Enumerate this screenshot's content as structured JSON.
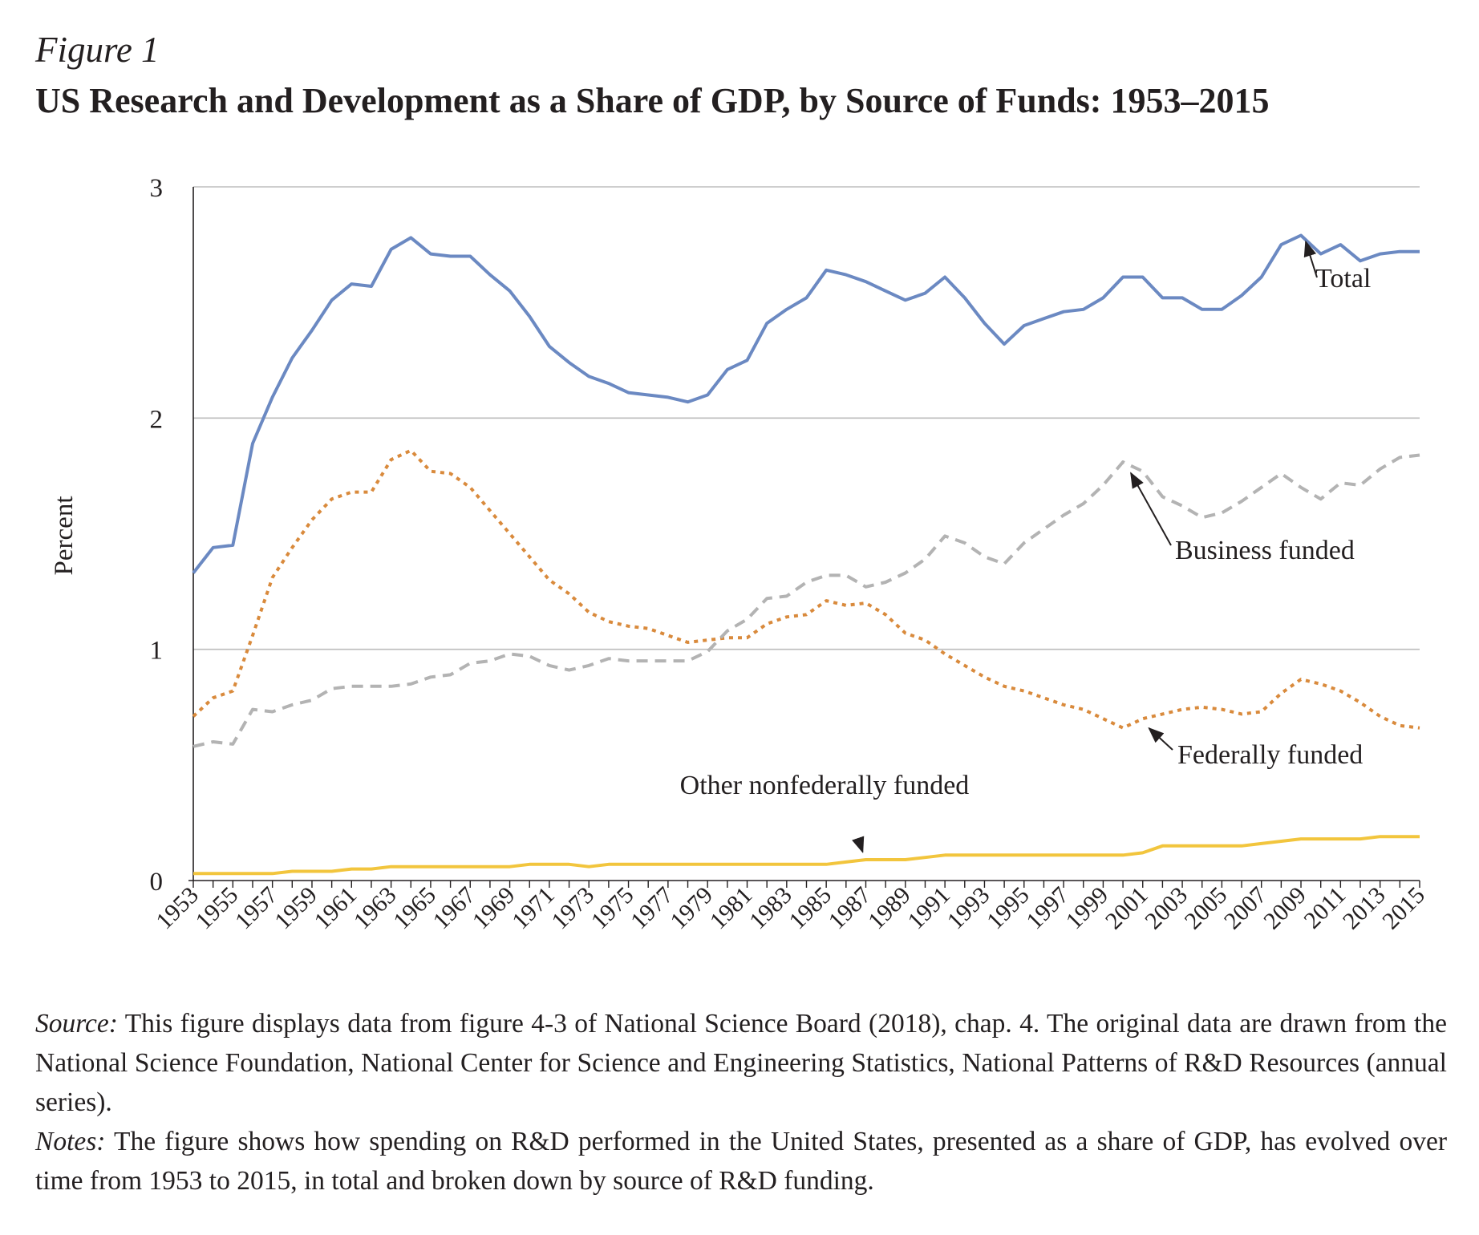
{
  "figure_label": "Figure 1",
  "title": "US Research and Development as a Share of GDP, by Source of Funds: 1953–2015",
  "source_label": "Source:",
  "source_text": "This figure displays data from figure 4-3 of National Science Board (2018), chap. 4. The original data are drawn from the National Science Foundation, National Center for Science and Engineering Statistics, National Patterns of R&D Resources (annual series).",
  "notes_label": "Notes:",
  "notes_text": "The figure shows how spending on R&D performed in the United States, presented as a share of GDP, has evolved over time from 1953 to 2015, in total and broken down by source of R&D funding.",
  "chart_data": {
    "type": "line",
    "ylabel": "Percent",
    "xlabel": "",
    "ylim": [
      0,
      3
    ],
    "yticks": [
      0,
      1,
      2,
      3
    ],
    "grid": true,
    "x": [
      1953,
      1954,
      1955,
      1956,
      1957,
      1958,
      1959,
      1960,
      1961,
      1962,
      1963,
      1964,
      1965,
      1966,
      1967,
      1968,
      1969,
      1970,
      1971,
      1972,
      1973,
      1974,
      1975,
      1976,
      1977,
      1978,
      1979,
      1980,
      1981,
      1982,
      1983,
      1984,
      1985,
      1986,
      1987,
      1988,
      1989,
      1990,
      1991,
      1992,
      1993,
      1994,
      1995,
      1996,
      1997,
      1998,
      1999,
      2000,
      2001,
      2002,
      2003,
      2004,
      2005,
      2006,
      2007,
      2008,
      2009,
      2010,
      2011,
      2012,
      2013,
      2014,
      2015
    ],
    "xtick_labels": [
      "1953",
      "1955",
      "1957",
      "1959",
      "1961",
      "1963",
      "1965",
      "1967",
      "1969",
      "1971",
      "1973",
      "1975",
      "1977",
      "1979",
      "1981",
      "1983",
      "1985",
      "1987",
      "1989",
      "1991",
      "1993",
      "1995",
      "1997",
      "1999",
      "2001",
      "2003",
      "2005",
      "2007",
      "2009",
      "2011",
      "2013",
      "2015"
    ],
    "series": [
      {
        "name": "Total",
        "color": "#6b89c2",
        "style": "solid",
        "values": [
          1.33,
          1.44,
          1.45,
          1.89,
          2.09,
          2.26,
          2.38,
          2.51,
          2.58,
          2.57,
          2.73,
          2.78,
          2.71,
          2.7,
          2.7,
          2.62,
          2.55,
          2.44,
          2.31,
          2.24,
          2.18,
          2.15,
          2.11,
          2.1,
          2.09,
          2.07,
          2.1,
          2.21,
          2.25,
          2.41,
          2.47,
          2.52,
          2.64,
          2.62,
          2.59,
          2.55,
          2.51,
          2.54,
          2.61,
          2.52,
          2.41,
          2.32,
          2.4,
          2.43,
          2.46,
          2.47,
          2.52,
          2.61,
          2.61,
          2.52,
          2.52,
          2.47,
          2.47,
          2.53,
          2.61,
          2.75,
          2.79,
          2.71,
          2.75,
          2.68,
          2.71,
          2.72,
          2.72
        ]
      },
      {
        "name": "Business funded",
        "color": "#b3b3b3",
        "style": "dashed",
        "values": [
          0.58,
          0.6,
          0.59,
          0.74,
          0.73,
          0.76,
          0.78,
          0.83,
          0.84,
          0.84,
          0.84,
          0.85,
          0.88,
          0.89,
          0.94,
          0.95,
          0.98,
          0.97,
          0.93,
          0.91,
          0.93,
          0.96,
          0.95,
          0.95,
          0.95,
          0.95,
          0.99,
          1.08,
          1.13,
          1.22,
          1.23,
          1.29,
          1.32,
          1.32,
          1.27,
          1.29,
          1.33,
          1.39,
          1.49,
          1.46,
          1.4,
          1.37,
          1.46,
          1.52,
          1.58,
          1.63,
          1.71,
          1.81,
          1.77,
          1.66,
          1.62,
          1.57,
          1.59,
          1.64,
          1.7,
          1.76,
          1.7,
          1.65,
          1.72,
          1.71,
          1.78,
          1.83,
          1.84
        ]
      },
      {
        "name": "Federally funded",
        "color": "#d98a3c",
        "style": "dotted",
        "values": [
          0.71,
          0.79,
          0.82,
          1.06,
          1.31,
          1.44,
          1.56,
          1.65,
          1.68,
          1.68,
          1.82,
          1.86,
          1.77,
          1.76,
          1.7,
          1.6,
          1.5,
          1.4,
          1.3,
          1.24,
          1.16,
          1.12,
          1.1,
          1.09,
          1.06,
          1.03,
          1.04,
          1.05,
          1.05,
          1.11,
          1.14,
          1.15,
          1.21,
          1.19,
          1.2,
          1.15,
          1.07,
          1.04,
          0.98,
          0.93,
          0.88,
          0.84,
          0.82,
          0.79,
          0.76,
          0.74,
          0.7,
          0.66,
          0.7,
          0.72,
          0.74,
          0.75,
          0.74,
          0.72,
          0.73,
          0.81,
          0.87,
          0.85,
          0.82,
          0.77,
          0.71,
          0.67,
          0.66
        ]
      },
      {
        "name": "Other nonfederally funded",
        "color": "#f2c53d",
        "style": "solid",
        "values": [
          0.03,
          0.03,
          0.03,
          0.03,
          0.03,
          0.04,
          0.04,
          0.04,
          0.05,
          0.05,
          0.06,
          0.06,
          0.06,
          0.06,
          0.06,
          0.06,
          0.06,
          0.07,
          0.07,
          0.07,
          0.06,
          0.07,
          0.07,
          0.07,
          0.07,
          0.07,
          0.07,
          0.07,
          0.07,
          0.07,
          0.07,
          0.07,
          0.07,
          0.08,
          0.09,
          0.09,
          0.09,
          0.1,
          0.11,
          0.11,
          0.11,
          0.11,
          0.11,
          0.11,
          0.11,
          0.11,
          0.11,
          0.11,
          0.12,
          0.15,
          0.15,
          0.15,
          0.15,
          0.15,
          0.16,
          0.17,
          0.18,
          0.18,
          0.18,
          0.18,
          0.19,
          0.19,
          0.19
        ]
      }
    ],
    "annotations": [
      {
        "text": "Total",
        "series": "Total",
        "year": 2009
      },
      {
        "text": "Business funded",
        "series": "Business funded",
        "year": 2000
      },
      {
        "text": "Federally funded",
        "series": "Federally funded",
        "year": 2001
      },
      {
        "text": "Other nonfederally funded",
        "series": "Other nonfederally funded",
        "year": 1987
      }
    ]
  }
}
